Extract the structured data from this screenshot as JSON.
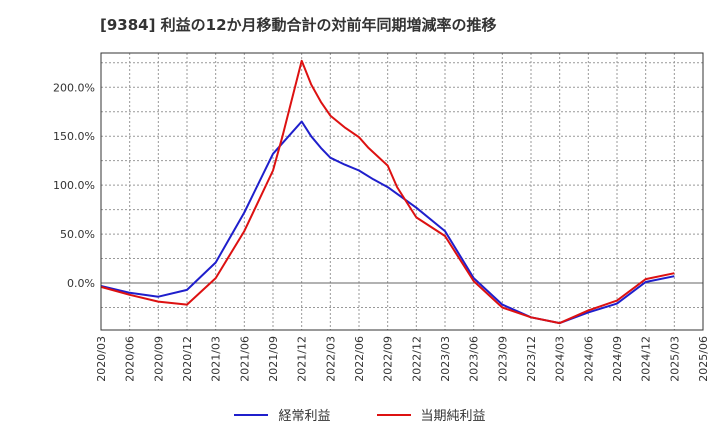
{
  "chart_data": {
    "type": "line",
    "title": "[9384]  利益の12か月移動合計の対前年同期増減率の推移",
    "xlabel": "",
    "ylabel": "",
    "ylim": [
      -48,
      235
    ],
    "y_ticks": [
      0,
      50,
      100,
      150,
      200
    ],
    "y_tick_labels": [
      "0.0%",
      "50.0%",
      "100.0%",
      "150.0%",
      "200.0%"
    ],
    "categories": [
      "2020/03",
      "2020/06",
      "2020/09",
      "2020/12",
      "2021/03",
      "2021/06",
      "2021/09",
      "2021/12",
      "2022/03",
      "2022/06",
      "2022/09",
      "2022/12",
      "2023/03",
      "2023/06",
      "2023/09",
      "2023/12",
      "2024/03",
      "2024/06",
      "2024/09",
      "2024/12",
      "2025/03",
      "2025/06"
    ],
    "series": [
      {
        "name": "経常利益",
        "color": "#1f1fcc",
        "points": [
          [
            0,
            -3
          ],
          [
            1,
            -10
          ],
          [
            2,
            -14
          ],
          [
            3,
            -7
          ],
          [
            4,
            21
          ],
          [
            5,
            72
          ],
          [
            6,
            132
          ],
          [
            7,
            165
          ],
          [
            7.33,
            150
          ],
          [
            7.67,
            138
          ],
          [
            8,
            128
          ],
          [
            8.5,
            121
          ],
          [
            9,
            115
          ],
          [
            9.5,
            106
          ],
          [
            10,
            98
          ],
          [
            11,
            77
          ],
          [
            12,
            53
          ],
          [
            13,
            5
          ],
          [
            14,
            -22
          ],
          [
            15,
            -35
          ],
          [
            16,
            -41
          ],
          [
            17,
            -30
          ],
          [
            18,
            -21
          ],
          [
            19,
            1
          ],
          [
            20,
            7
          ]
        ]
      },
      {
        "name": "当期純利益",
        "color": "#dd1111",
        "points": [
          [
            0,
            -4
          ],
          [
            1,
            -12
          ],
          [
            2,
            -19
          ],
          [
            3,
            -22
          ],
          [
            4,
            5
          ],
          [
            5,
            53
          ],
          [
            6,
            115
          ],
          [
            6.33,
            150
          ],
          [
            7,
            227
          ],
          [
            7.33,
            203
          ],
          [
            7.67,
            185
          ],
          [
            8,
            171
          ],
          [
            8.5,
            159
          ],
          [
            9,
            149
          ],
          [
            9.33,
            138
          ],
          [
            10,
            120
          ],
          [
            10.33,
            98
          ],
          [
            11,
            67
          ],
          [
            12,
            48
          ],
          [
            13,
            2
          ],
          [
            14,
            -25
          ],
          [
            15,
            -35
          ],
          [
            16,
            -41
          ],
          [
            17,
            -28
          ],
          [
            18,
            -18
          ],
          [
            19,
            4
          ],
          [
            20,
            10
          ]
        ]
      }
    ],
    "legend_position": "bottom-center",
    "grid": true
  }
}
